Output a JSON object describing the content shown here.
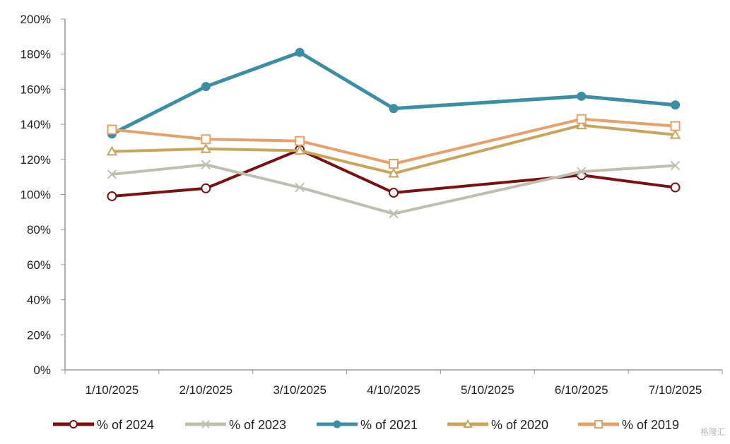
{
  "chart_data": {
    "type": "line",
    "title": "",
    "xlabel": "",
    "ylabel": "",
    "categories": [
      "1/10/2025",
      "2/10/2025",
      "3/10/2025",
      "4/10/2025",
      "5/10/2025",
      "6/10/2025",
      "7/10/2025"
    ],
    "ylim": [
      0,
      200
    ],
    "yticks": [
      0,
      20,
      40,
      60,
      80,
      100,
      120,
      140,
      160,
      180,
      200
    ],
    "y_tick_labels": [
      "0%",
      "20%",
      "40%",
      "60%",
      "80%",
      "100%",
      "120%",
      "140%",
      "160%",
      "180%",
      "200%"
    ],
    "grid": false,
    "legend_position": "bottom",
    "series": [
      {
        "name": "% of 2024",
        "color": "#7b1010",
        "marker": "circle-open",
        "values": [
          99,
          103.5,
          125.5,
          101,
          null,
          111,
          104
        ]
      },
      {
        "name": "% of 2023",
        "color": "#bfbfb0",
        "marker": "x",
        "values": [
          111.5,
          117,
          104,
          89,
          null,
          113,
          116.5
        ]
      },
      {
        "name": "% of 2021",
        "color": "#3a8fa3",
        "marker": "circle-filled",
        "values": [
          134.5,
          161.5,
          181,
          149,
          null,
          156,
          151
        ]
      },
      {
        "name": "% of 2020",
        "color": "#c9a55a",
        "marker": "triangle-open",
        "values": [
          124.5,
          126,
          125,
          112,
          null,
          139.5,
          134
        ]
      },
      {
        "name": "% of 2019",
        "color": "#e8a06a",
        "marker": "square-open",
        "values": [
          137,
          131.5,
          130.5,
          117.5,
          null,
          143,
          139
        ]
      }
    ]
  },
  "watermark": "格隆汇"
}
